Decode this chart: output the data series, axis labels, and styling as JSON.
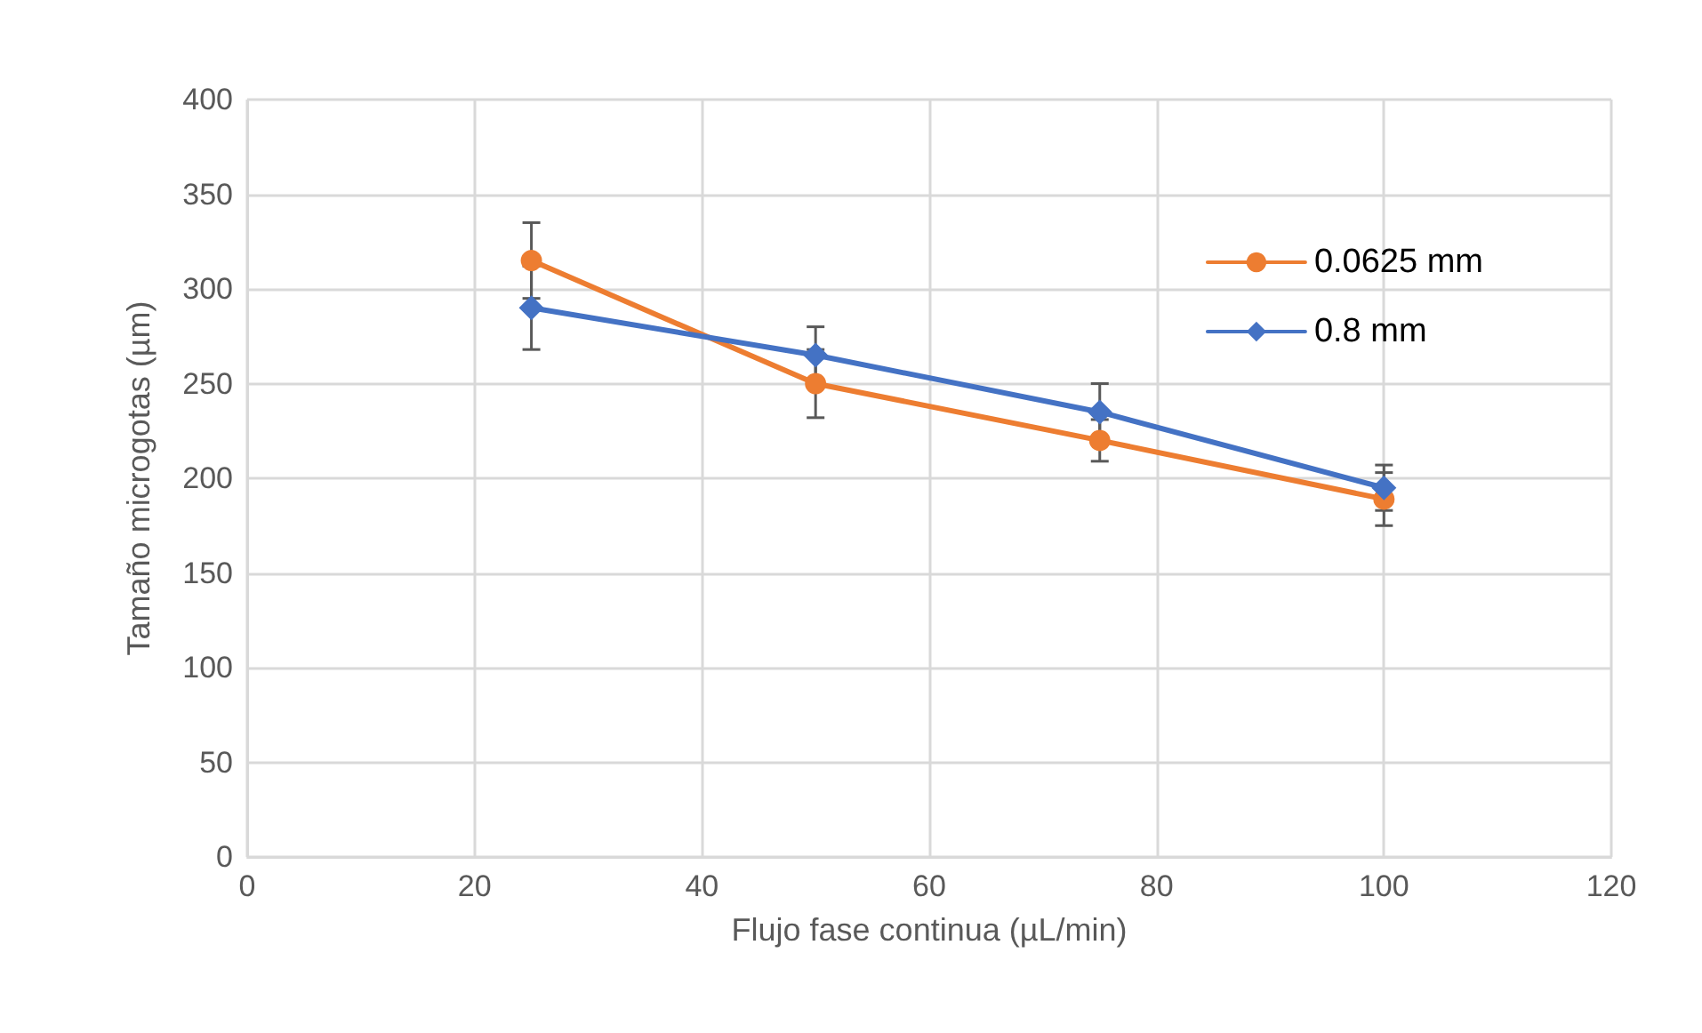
{
  "chart_data": {
    "type": "line",
    "xlabel": "Flujo fase continua (µL/min)",
    "ylabel": "Tamaño microgotas (µm)",
    "x": [
      25,
      50,
      75,
      100
    ],
    "series": [
      {
        "name": "0.0625 mm",
        "color": "#ed7d31",
        "values": [
          315,
          250,
          220,
          189
        ],
        "errors": [
          20,
          18,
          11,
          14
        ],
        "marker": "circle"
      },
      {
        "name": "0.8 mm",
        "color": "#4472c4",
        "values": [
          290,
          265,
          235,
          195
        ],
        "errors": [
          22,
          15,
          15,
          12
        ],
        "marker": "diamond"
      }
    ],
    "xlim": [
      0,
      120
    ],
    "xticks": [
      0,
      20,
      40,
      60,
      80,
      100,
      120
    ],
    "ylim": [
      0,
      400
    ],
    "yticks": [
      0,
      50,
      100,
      150,
      200,
      250,
      300,
      350,
      400
    ],
    "grid": true,
    "legend": "right",
    "line_style": "solid"
  }
}
